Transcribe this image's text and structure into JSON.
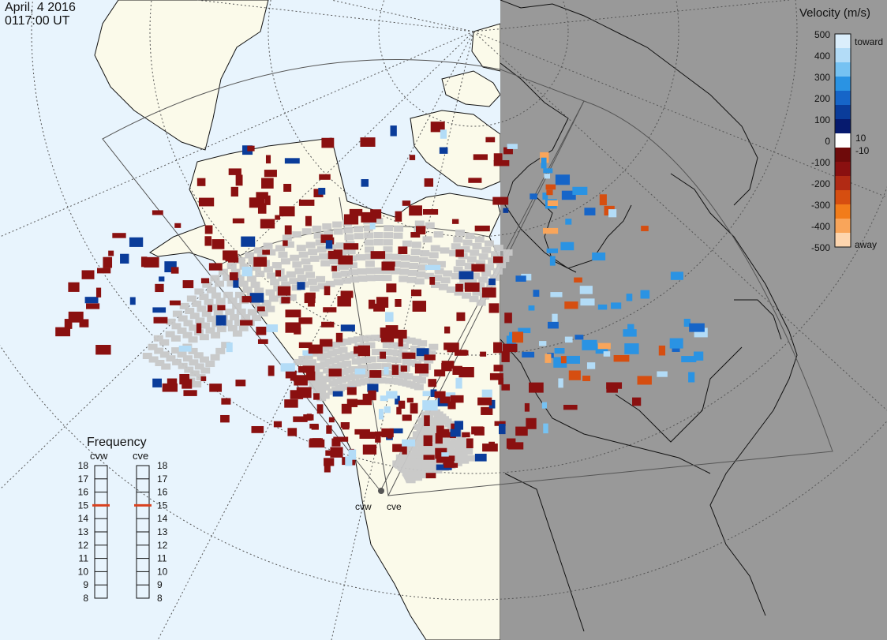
{
  "header": {
    "date": "April, 4 2016",
    "time": "0117:00 UT"
  },
  "colors": {
    "ocean": "#e8f4fd",
    "land": "#fbfaea",
    "night": "#999999",
    "grid": "#777777",
    "coast": "#111111",
    "ground_scatter": "#c8c8c8"
  },
  "map": {
    "projection": "polar",
    "radars": [
      {
        "id": "cvw",
        "label": "cvw"
      },
      {
        "id": "cve",
        "label": "cve"
      }
    ]
  },
  "velocity_scale": {
    "title": "Velocity (m/s)",
    "ticks": [
      "500",
      "400",
      "300",
      "200",
      "100",
      "10",
      "0",
      "-10",
      "-100",
      "-200",
      "-300",
      "-400",
      "-500"
    ],
    "toward_label": "toward",
    "away_label": "away",
    "colors": [
      "#dbeefb",
      "#b3dcf7",
      "#76c2f2",
      "#2a93e3",
      "#1665c8",
      "#0a3c9a",
      "#061a6e",
      "#ffffff",
      "#6e0a0a",
      "#8a1010",
      "#b12a14",
      "#d64e10",
      "#f27c1a",
      "#f9a55a",
      "#fdd5ae"
    ]
  },
  "frequency": {
    "title": "Frequency",
    "columns": [
      {
        "label": "cvw",
        "value": 15
      },
      {
        "label": "cve",
        "value": 15
      }
    ],
    "ticks": [
      "18",
      "17",
      "16",
      "15",
      "14",
      "13",
      "12",
      "11",
      "10",
      "9",
      "8"
    ],
    "marker_color": "#d9411e"
  }
}
